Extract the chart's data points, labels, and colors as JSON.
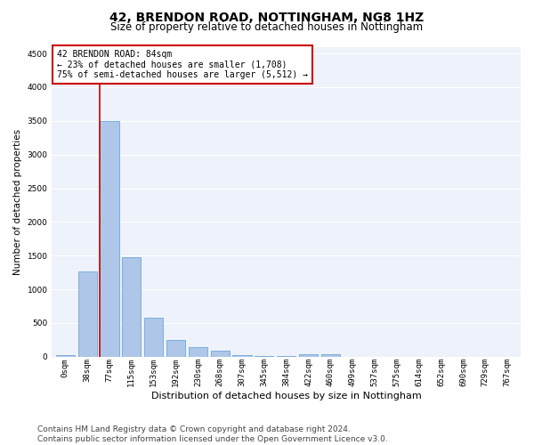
{
  "title1": "42, BRENDON ROAD, NOTTINGHAM, NG8 1HZ",
  "title2": "Size of property relative to detached houses in Nottingham",
  "xlabel": "Distribution of detached houses by size in Nottingham",
  "ylabel": "Number of detached properties",
  "bar_color": "#aec6e8",
  "bar_edge_color": "#5b9bd5",
  "categories": [
    "0sqm",
    "38sqm",
    "77sqm",
    "115sqm",
    "153sqm",
    "192sqm",
    "230sqm",
    "268sqm",
    "307sqm",
    "345sqm",
    "384sqm",
    "422sqm",
    "460sqm",
    "499sqm",
    "537sqm",
    "575sqm",
    "614sqm",
    "652sqm",
    "690sqm",
    "729sqm",
    "767sqm"
  ],
  "values": [
    30,
    1270,
    3500,
    1480,
    580,
    250,
    140,
    90,
    30,
    15,
    5,
    40,
    40,
    0,
    0,
    0,
    0,
    0,
    0,
    0,
    0
  ],
  "ylim": [
    0,
    4600
  ],
  "yticks": [
    0,
    500,
    1000,
    1500,
    2000,
    2500,
    3000,
    3500,
    4000,
    4500
  ],
  "vline_x": 1.55,
  "annotation_text": "42 BRENDON ROAD: 84sqm\n← 23% of detached houses are smaller (1,708)\n75% of semi-detached houses are larger (5,512) →",
  "annotation_box_color": "#ffffff",
  "annotation_box_edge": "#cc0000",
  "footnote": "Contains HM Land Registry data © Crown copyright and database right 2024.\nContains public sector information licensed under the Open Government Licence v3.0.",
  "background_color": "#eef2fa",
  "grid_color": "#ffffff",
  "title1_fontsize": 10,
  "title2_fontsize": 8.5,
  "xlabel_fontsize": 8,
  "ylabel_fontsize": 7.5,
  "tick_fontsize": 6.5,
  "footnote_fontsize": 6.5,
  "annot_fontsize": 7.0
}
